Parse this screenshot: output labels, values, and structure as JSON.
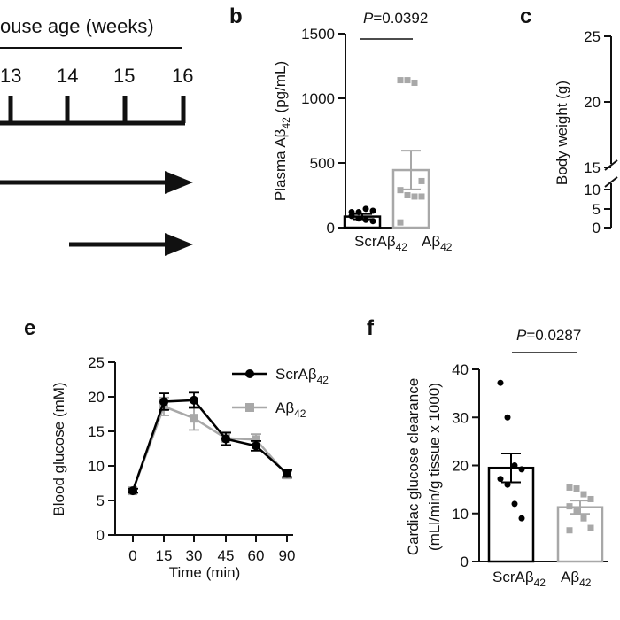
{
  "panels": {
    "a_partial": {
      "title": "ouse age (weeks)",
      "week_labels": [
        "13",
        "14",
        "15",
        "16"
      ]
    },
    "b": {
      "letter": "b",
      "p_prefix": "P",
      "p_value": "=0.0392"
    },
    "c_partial": {
      "letter": "c",
      "ylabel": "Body weight (g)",
      "ticks_upper": [
        "25",
        "20",
        "15"
      ],
      "ticks_lower": [
        "10",
        "5",
        "0"
      ]
    },
    "e": {
      "letter": "e",
      "legend": [
        "ScrAβ42",
        "Aβ42"
      ]
    },
    "f": {
      "letter": "f",
      "p_prefix": "P",
      "p_value": "=0.0287"
    }
  },
  "chart_data": [
    {
      "id": "b",
      "type": "bar",
      "ylabel": "Plasma Aβ42 (pg/mL)",
      "ylim": [
        0,
        1500
      ],
      "yticks": [
        0,
        500,
        1000,
        1500
      ],
      "categories": [
        "ScrAβ42",
        "Aβ42"
      ],
      "series": [
        {
          "values": [
            85,
            445
          ],
          "sem": [
            20,
            150
          ],
          "color": "#000000",
          "points": [
            [
              120,
              120,
              145,
              130,
              90,
              70,
              60,
              50
            ],
            [
              1140,
              1140,
              1120,
              360,
              290,
              250,
              240,
              240,
              40
            ]
          ]
        }
      ],
      "points_colors": [
        "#000000",
        "#a8a8a8"
      ]
    },
    {
      "id": "e",
      "type": "line",
      "xlabel": "Time (min)",
      "ylabel": "Blood glucose (mM)",
      "x": [
        0,
        15,
        30,
        45,
        60,
        90
      ],
      "ylim": [
        0,
        25
      ],
      "yticks": [
        0,
        5,
        10,
        15,
        20,
        25
      ],
      "series": [
        {
          "name": "ScrAβ42",
          "color": "#000000",
          "values": [
            6.4,
            19.3,
            19.5,
            13.9,
            12.9,
            8.9
          ],
          "err": [
            0.3,
            1.2,
            1.1,
            0.9,
            0.7,
            0.5
          ]
        },
        {
          "name": "Aβ42",
          "color": "#a8a8a8",
          "values": [
            6.4,
            18.6,
            16.9,
            14.0,
            13.8,
            8.7
          ],
          "err": [
            0.3,
            1.3,
            1.7,
            0.9,
            0.8,
            0.5
          ]
        }
      ]
    },
    {
      "id": "f",
      "type": "bar",
      "ylabel": "Cardiac glucose clearance (mL/min/g tissue x 1000)",
      "ylim": [
        0,
        40
      ],
      "yticks": [
        0,
        10,
        20,
        30,
        40
      ],
      "categories": [
        "ScrAβ42",
        "Aβ42"
      ],
      "series": [
        {
          "values": [
            19.5,
            11.3
          ],
          "sem": [
            3.0,
            1.4
          ],
          "points": [
            [
              37.2,
              30.0,
              20.0,
              19.2,
              17.2,
              16.0,
              12.0,
              9.0
            ],
            [
              15.4,
              15.2,
              14.0,
              13.0,
              11.5,
              10.5,
              9.0,
              7.0,
              6.5
            ]
          ]
        }
      ],
      "points_colors": [
        "#000000",
        "#a8a8a8"
      ]
    }
  ]
}
